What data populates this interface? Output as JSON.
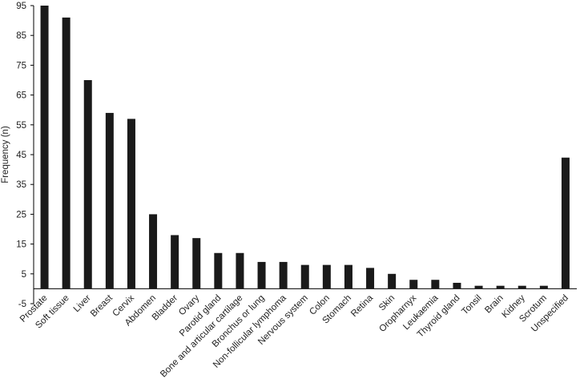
{
  "chart_data": {
    "type": "bar",
    "title": "",
    "xlabel": "",
    "ylabel": "Frequency (n)",
    "ylim": [
      -5,
      95
    ],
    "yticks": [
      -5,
      5,
      15,
      25,
      35,
      45,
      55,
      65,
      75,
      85,
      95
    ],
    "grid": false,
    "legend": "none",
    "bar_color": "#1a1a1a",
    "categories": [
      "Prostate",
      "Soft tissue",
      "Liver",
      "Breast",
      "Cervix",
      "Abdomen",
      "Bladder",
      "Ovary",
      "Parotid gland",
      "Bone and articular cartilage",
      "Bronchus or lung",
      "Non-follicular lymphoma",
      "Nervous system",
      "Colon",
      "Stomach",
      "Retina",
      "Skin",
      "Oropharnyx",
      "Leukaemia",
      "Thyroid gland",
      "Tonsil",
      "Brain",
      "Kidney",
      "Scrotum",
      "Unspecified"
    ],
    "values": [
      95,
      91,
      70,
      59,
      57,
      25,
      18,
      17,
      12,
      12,
      9,
      9,
      8,
      8,
      8,
      7,
      5,
      3,
      3,
      2,
      1,
      1,
      1,
      1,
      44
    ]
  }
}
